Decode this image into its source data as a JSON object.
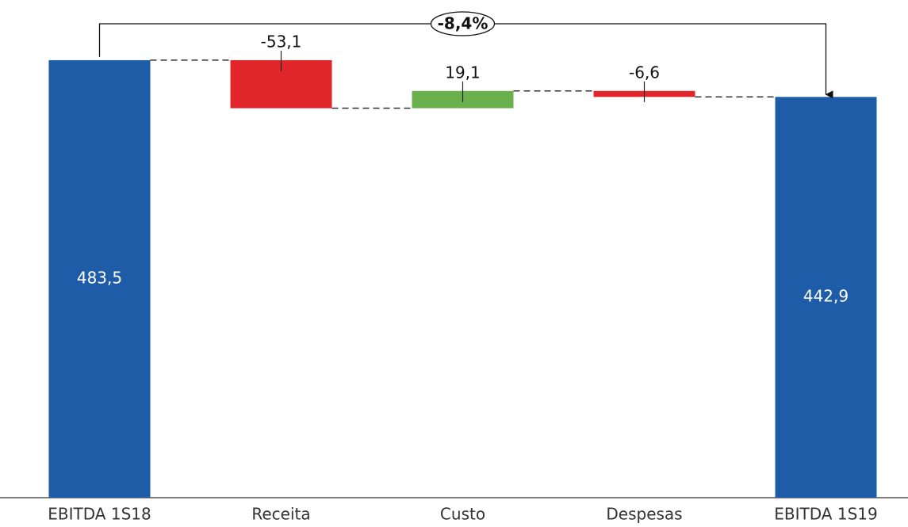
{
  "chart_data": {
    "type": "waterfall",
    "categories": [
      "EBITDA 1S18",
      "Receita",
      "Custo",
      "Despesas",
      "EBITDA 1S19"
    ],
    "values": [
      483.5,
      -53.1,
      19.1,
      -6.6,
      442.9
    ],
    "value_labels": [
      "483,5",
      "-53,1",
      "19,1",
      "-6,6",
      "442,9"
    ],
    "kinds": [
      "total",
      "delta",
      "delta",
      "delta",
      "total"
    ],
    "colors": {
      "total": "#1f5ca8",
      "increase": "#6ab04c",
      "decrease": "#e0262b"
    },
    "annotation": "-8,4%",
    "ylim": [
      0,
      550
    ]
  }
}
